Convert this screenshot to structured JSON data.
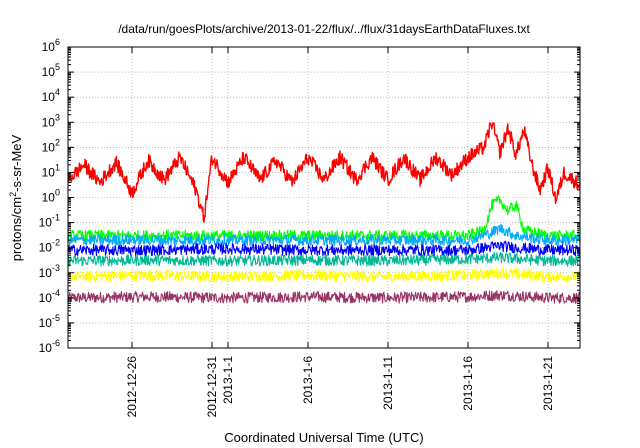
{
  "chart_data": {
    "type": "line",
    "title": "/data/run/goesPlots/archive/2013-01-22/flux/../flux/31daysEarthDataFluxes.txt",
    "xlabel": "Coordinated Universal Time (UTC)",
    "ylabel_main": "protons/cm",
    "ylabel_sup": "2",
    "ylabel_rest": "-s-sr-MeV",
    "y_scale": "log",
    "ylim": [
      1e-06,
      1000000.0
    ],
    "y_ticks": [
      {
        "exp": "-6"
      },
      {
        "exp": "-5"
      },
      {
        "exp": "-4"
      },
      {
        "exp": "-3"
      },
      {
        "exp": "-2"
      },
      {
        "exp": "-1"
      },
      {
        "exp": "0"
      },
      {
        "exp": "1"
      },
      {
        "exp": "2"
      },
      {
        "exp": "3"
      },
      {
        "exp": "4"
      },
      {
        "exp": "5"
      },
      {
        "exp": "6"
      }
    ],
    "y_tick_base": "10",
    "xlim": [
      "2012-12-22",
      "2013-01-23"
    ],
    "x_ticks": [
      {
        "label": "2012-12-26",
        "date": "2012-12-26"
      },
      {
        "label": "2012-12-31",
        "date": "2012-12-31"
      },
      {
        "label": "2013-1-1",
        "date": "2013-01-01"
      },
      {
        "label": "2013-1-6",
        "date": "2013-01-06"
      },
      {
        "label": "2013-1-11",
        "date": "2013-01-11"
      },
      {
        "label": "2013-1-16",
        "date": "2013-01-16"
      },
      {
        "label": "2013-1-21",
        "date": "2013-01-21"
      }
    ],
    "grid": true,
    "legend": "none",
    "series": [
      {
        "color": "#993366",
        "points": [
          [
            "2012-12-22",
            0.0001
          ],
          [
            "2012-12-27",
            0.00011
          ],
          [
            "2013-01-01",
            0.0001
          ],
          [
            "2013-01-06",
            0.00011
          ],
          [
            "2013-01-11",
            0.0001
          ],
          [
            "2013-01-16",
            0.00011
          ],
          [
            "2013-01-18",
            0.00013
          ],
          [
            "2013-01-21",
            0.0001
          ],
          [
            "2013-01-23",
            0.0001
          ]
        ]
      },
      {
        "color": "#ffff00",
        "points": [
          [
            "2012-12-22",
            0.0007
          ],
          [
            "2012-12-27",
            0.0008
          ],
          [
            "2013-01-01",
            0.0007
          ],
          [
            "2013-01-06",
            0.0008
          ],
          [
            "2013-01-11",
            0.0007
          ],
          [
            "2013-01-16",
            0.0008
          ],
          [
            "2013-01-18",
            0.001
          ],
          [
            "2013-01-21",
            0.0007
          ],
          [
            "2013-01-23",
            0.0007
          ]
        ]
      },
      {
        "color": "#00b894",
        "points": [
          [
            "2012-12-22",
            0.003
          ],
          [
            "2012-12-27",
            0.0032
          ],
          [
            "2013-01-01",
            0.003
          ],
          [
            "2013-01-06",
            0.0032
          ],
          [
            "2013-01-11",
            0.003
          ],
          [
            "2013-01-16",
            0.0035
          ],
          [
            "2013-01-18",
            0.004
          ],
          [
            "2013-01-21",
            0.003
          ],
          [
            "2013-01-23",
            0.003
          ]
        ]
      },
      {
        "color": "#00ff00",
        "points": [
          [
            "2012-12-22",
            0.03
          ],
          [
            "2012-12-27",
            0.03
          ],
          [
            "2013-01-01",
            0.03
          ],
          [
            "2013-01-06",
            0.03
          ],
          [
            "2013-01-11",
            0.03
          ],
          [
            "2013-01-16",
            0.03
          ],
          [
            "2013-01-17",
            0.05
          ],
          [
            "2013-01-17.5",
            0.5
          ],
          [
            "2013-01-18",
            0.8
          ],
          [
            "2013-01-18.5",
            0.3
          ],
          [
            "2013-01-19",
            0.5
          ],
          [
            "2013-01-19.5",
            0.05
          ],
          [
            "2013-01-21",
            0.03
          ],
          [
            "2013-01-23",
            0.03
          ]
        ]
      },
      {
        "color": "#00aaff",
        "points": [
          [
            "2012-12-22",
            0.02
          ],
          [
            "2012-12-27",
            0.02
          ],
          [
            "2013-01-01",
            0.02
          ],
          [
            "2013-01-06",
            0.02
          ],
          [
            "2013-01-11",
            0.02
          ],
          [
            "2013-01-16",
            0.02
          ],
          [
            "2013-01-17.5",
            0.04
          ],
          [
            "2013-01-18",
            0.06
          ],
          [
            "2013-01-19",
            0.03
          ],
          [
            "2013-01-21",
            0.02
          ],
          [
            "2013-01-23",
            0.02
          ]
        ]
      },
      {
        "color": "#0000ff",
        "points": [
          [
            "2012-12-22",
            0.008
          ],
          [
            "2012-12-27",
            0.008
          ],
          [
            "2013-01-01",
            0.009
          ],
          [
            "2013-01-06",
            0.008
          ],
          [
            "2013-01-11",
            0.008
          ],
          [
            "2013-01-16",
            0.008
          ],
          [
            "2013-01-18",
            0.012
          ],
          [
            "2013-01-19",
            0.01
          ],
          [
            "2013-01-21",
            0.008
          ],
          [
            "2013-01-23",
            0.008
          ]
        ]
      },
      {
        "color": "#ff0000",
        "points": [
          [
            "2012-12-22",
            5
          ],
          [
            "2012-12-23",
            20
          ],
          [
            "2012-12-24",
            4
          ],
          [
            "2012-12-25",
            25
          ],
          [
            "2012-12-26",
            1.5
          ],
          [
            "2012-12-27",
            30
          ],
          [
            "2012-12-28",
            5
          ],
          [
            "2012-12-29",
            40
          ],
          [
            "2012-12-30",
            2
          ],
          [
            "2012-12-30.5",
            0.15
          ],
          [
            "2012-12-31",
            40
          ],
          [
            "2013-01-01",
            4
          ],
          [
            "2013-01-02",
            40
          ],
          [
            "2013-01-03",
            5
          ],
          [
            "2013-01-04",
            30
          ],
          [
            "2013-01-05",
            4
          ],
          [
            "2013-01-06",
            40
          ],
          [
            "2013-01-07",
            5
          ],
          [
            "2013-01-08",
            40
          ],
          [
            "2013-01-09",
            5
          ],
          [
            "2013-01-10",
            40
          ],
          [
            "2013-01-11",
            5
          ],
          [
            "2013-01-12",
            40
          ],
          [
            "2013-01-13",
            5
          ],
          [
            "2013-01-14",
            40
          ],
          [
            "2013-01-15",
            8
          ],
          [
            "2013-01-16",
            40
          ],
          [
            "2013-01-17",
            100
          ],
          [
            "2013-01-17.5",
            1000
          ],
          [
            "2013-01-18",
            60
          ],
          [
            "2013-01-18.5",
            600
          ],
          [
            "2013-01-19",
            50
          ],
          [
            "2013-01-19.5",
            500
          ],
          [
            "2013-01-20",
            20
          ],
          [
            "2013-01-20.5",
            2
          ],
          [
            "2013-01-21",
            15
          ],
          [
            "2013-01-21.5",
            0.8
          ],
          [
            "2013-01-22",
            10
          ],
          [
            "2013-01-23",
            3
          ]
        ]
      }
    ]
  }
}
